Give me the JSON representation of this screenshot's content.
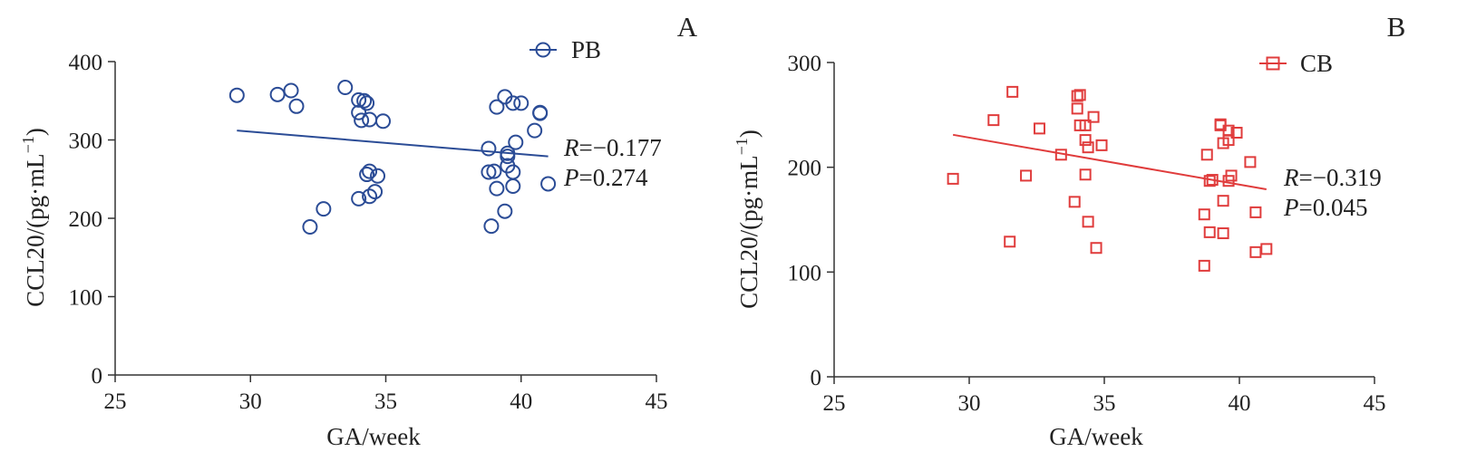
{
  "chart_data": [
    {
      "panel": "A",
      "type": "scatter",
      "color": "#2b4c96",
      "marker": "circle",
      "series": [
        {
          "name": "PB",
          "points": [
            [
              29.5,
              357
            ],
            [
              31.0,
              358
            ],
            [
              31.5,
              363
            ],
            [
              31.7,
              343
            ],
            [
              32.2,
              189
            ],
            [
              32.7,
              212
            ],
            [
              33.5,
              367
            ],
            [
              34.0,
              351
            ],
            [
              34.2,
              350
            ],
            [
              34.0,
              335
            ],
            [
              34.1,
              325
            ],
            [
              34.4,
              326
            ],
            [
              34.9,
              324
            ],
            [
              34.3,
              347
            ],
            [
              34.3,
              256
            ],
            [
              34.4,
              260
            ],
            [
              34.7,
              254
            ],
            [
              34.6,
              234
            ],
            [
              34.4,
              228
            ],
            [
              34.0,
              225
            ],
            [
              38.8,
              289
            ],
            [
              38.8,
              259
            ],
            [
              38.9,
              190
            ],
            [
              39.0,
              260
            ],
            [
              39.1,
              342
            ],
            [
              39.1,
              238
            ],
            [
              39.4,
              355
            ],
            [
              39.4,
              209
            ],
            [
              39.5,
              267
            ],
            [
              39.5,
              279
            ],
            [
              39.5,
              283
            ],
            [
              39.7,
              347
            ],
            [
              39.7,
              241
            ],
            [
              39.7,
              259
            ],
            [
              39.8,
              297
            ],
            [
              40.0,
              347
            ],
            [
              40.5,
              312
            ],
            [
              40.7,
              335
            ],
            [
              40.7,
              334
            ],
            [
              41.0,
              244
            ]
          ]
        }
      ],
      "trend_line": {
        "x": [
          29.5,
          41.0
        ],
        "y": [
          312,
          279
        ]
      },
      "stats": {
        "r_symbol": "R",
        "r_text": "=−0.177",
        "p_symbol": "P",
        "p_text": "=0.274"
      },
      "xlabel": "GA/week",
      "ylabel": "CCL20/(pg·mL",
      "ylabel_sup": "−1",
      "ylabel_close": ")",
      "xlim": [
        25,
        45
      ],
      "ylim": [
        0,
        400
      ],
      "xticks": [
        25,
        30,
        35,
        40,
        45
      ],
      "yticks": [
        0,
        100,
        200,
        300,
        400
      ],
      "legend_position": "top-right",
      "grid": false
    },
    {
      "panel": "B",
      "type": "scatter",
      "color": "#e03c3c",
      "marker": "square",
      "series": [
        {
          "name": "CB",
          "points": [
            [
              29.4,
              189
            ],
            [
              30.9,
              245
            ],
            [
              31.5,
              129
            ],
            [
              31.6,
              272
            ],
            [
              32.1,
              192
            ],
            [
              32.6,
              237
            ],
            [
              33.4,
              212
            ],
            [
              33.9,
              167
            ],
            [
              34.0,
              256
            ],
            [
              34.0,
              268
            ],
            [
              34.1,
              269
            ],
            [
              34.1,
              240
            ],
            [
              34.3,
              226
            ],
            [
              34.3,
              193
            ],
            [
              34.3,
              240
            ],
            [
              34.4,
              219
            ],
            [
              34.4,
              148
            ],
            [
              34.6,
              248
            ],
            [
              34.7,
              123
            ],
            [
              34.9,
              221
            ],
            [
              38.7,
              106
            ],
            [
              38.7,
              155
            ],
            [
              38.8,
              212
            ],
            [
              38.9,
              138
            ],
            [
              38.9,
              187
            ],
            [
              39.0,
              188
            ],
            [
              39.3,
              240
            ],
            [
              39.3,
              241
            ],
            [
              39.4,
              223
            ],
            [
              39.4,
              168
            ],
            [
              39.4,
              137
            ],
            [
              39.6,
              187
            ],
            [
              39.6,
              235
            ],
            [
              39.6,
              226
            ],
            [
              39.7,
              192
            ],
            [
              39.9,
              233
            ],
            [
              40.4,
              205
            ],
            [
              40.6,
              157
            ],
            [
              40.6,
              119
            ],
            [
              41.0,
              122
            ]
          ]
        }
      ],
      "trend_line": {
        "x": [
          29.4,
          41.0
        ],
        "y": [
          231,
          179
        ]
      },
      "stats": {
        "r_symbol": "R",
        "r_text": "=−0.319",
        "p_symbol": "P",
        "p_text": "=0.045"
      },
      "xlabel": "GA/week",
      "ylabel": "CCL20/(pg·mL",
      "ylabel_sup": "−1",
      "ylabel_close": ")",
      "xlim": [
        25,
        45
      ],
      "ylim": [
        0,
        300
      ],
      "xticks": [
        25,
        30,
        35,
        40,
        45
      ],
      "yticks": [
        0,
        100,
        200,
        300
      ],
      "legend_position": "top-right",
      "grid": false
    }
  ]
}
